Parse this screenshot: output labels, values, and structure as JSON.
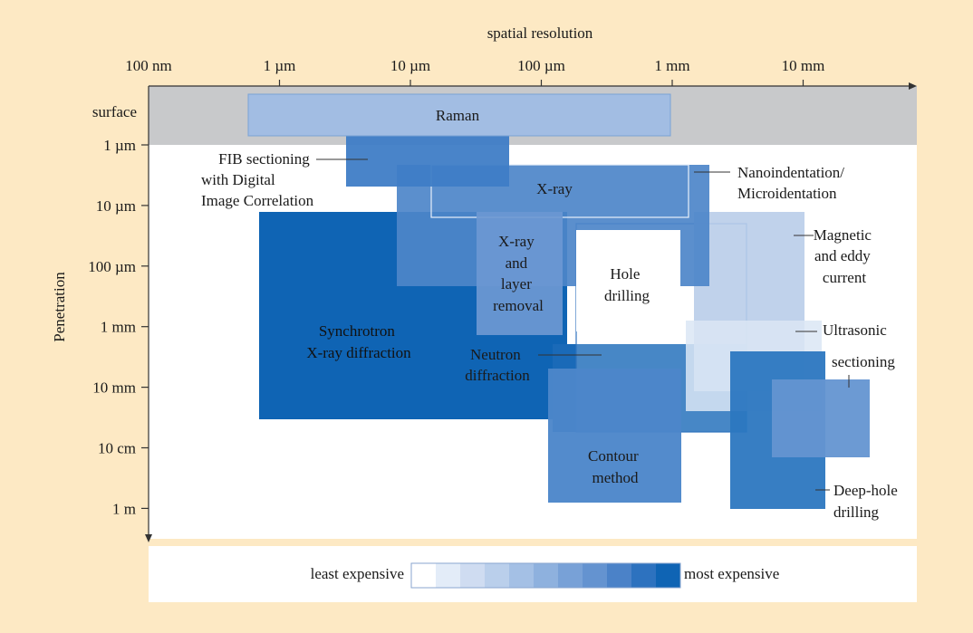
{
  "chart_data": {
    "type": "range-rectangles",
    "title": "",
    "xlabel": "spatial resolution",
    "ylabel": "Penetration",
    "x_axis": {
      "scale": "log",
      "unit": "m",
      "ticks": [
        {
          "value": 1e-07,
          "label": "100 nm"
        },
        {
          "value": 1e-06,
          "label": "1 µm"
        },
        {
          "value": 1e-05,
          "label": "10 µm"
        },
        {
          "value": 0.0001,
          "label": "100 µm"
        },
        {
          "value": 0.001,
          "label": "1 mm"
        },
        {
          "value": 0.01,
          "label": "10 mm"
        }
      ],
      "range": [
        1e-07,
        0.1
      ]
    },
    "y_axis": {
      "scale": "log",
      "unit": "m",
      "inverted": true,
      "surface_label": "surface",
      "ticks": [
        {
          "value": 1e-06,
          "label": "1 µm"
        },
        {
          "value": 1e-05,
          "label": "10 µm"
        },
        {
          "value": 0.0001,
          "label": "100 µm"
        },
        {
          "value": 0.001,
          "label": "1 mm"
        },
        {
          "value": 0.01,
          "label": "10 mm"
        },
        {
          "value": 0.1,
          "label": "10 cm"
        },
        {
          "value": 1,
          "label": "1 m"
        }
      ],
      "range": [
        1e-06,
        2
      ]
    },
    "cost_scale": {
      "low_label": "least expensive",
      "high_label": "most expensive",
      "colors": [
        "#ffffff",
        "#e3ecf8",
        "#cfdcf1",
        "#bacfeb",
        "#a4c0e5",
        "#8eb1de",
        "#78a1d7",
        "#6493d0",
        "#4b82c8",
        "#2d72bf",
        "#0f64b4"
      ]
    },
    "techniques": [
      {
        "name": "Synchrotron X-ray diffraction",
        "lines": [
          "Synchrotron",
          "X-ray diffraction"
        ],
        "x_range": [
          8e-07,
          0.002
        ],
        "depth_range": [
          1.5e-05,
          0.05
        ],
        "cost": 10
      },
      {
        "name": "FIB sectioning with Digital Image Correlation",
        "lines": [
          "FIB sectioning",
          "with Digital",
          "Image Correlation"
        ],
        "x_range": [
          3e-06,
          5e-05
        ],
        "depth_range": [
          1e-06,
          8e-06
        ],
        "cost": 7
      },
      {
        "name": "X-ray",
        "lines": [
          "X-ray"
        ],
        "x_range": [
          7e-06,
          0.0025
        ],
        "depth_range": [
          3e-06,
          0.0002
        ],
        "cost": 7
      },
      {
        "name": "X-ray and layer removal",
        "lines": [
          "X-ray",
          "and",
          "layer",
          "removal"
        ],
        "x_range": [
          3e-05,
          0.00017
        ],
        "depth_range": [
          2e-05,
          0.001
        ],
        "cost": 6
      },
      {
        "name": "Nanoindentation/Microidentation",
        "lines": [
          "Nanoindentation/",
          "Microidentation"
        ],
        "x_range": [
          2e-05,
          0.0015
        ],
        "depth_range": [
          0,
          1.4e-05
        ],
        "cost": 0
      },
      {
        "name": "Hole drilling",
        "lines": [
          "Hole",
          "drilling"
        ],
        "x_range": [
          0.00017,
          0.004
        ],
        "depth_range": [
          2.5e-05,
          0.07
        ],
        "cost": 0
      },
      {
        "name": "Magnetic and eddy current",
        "lines": [
          "Magnetic",
          "and eddy",
          "current"
        ],
        "x_range": [
          0.0016,
          0.02
        ],
        "depth_range": [
          1.5e-05,
          0.01
        ],
        "cost": 5
      },
      {
        "name": "Ultrasonic",
        "lines": [
          "Ultrasonic"
        ],
        "x_range": [
          0.001,
          0.02
        ],
        "depth_range": [
          0.001,
          0.04
        ],
        "cost": 2
      },
      {
        "name": "Neutron diffraction",
        "lines": [
          "Neutron",
          "diffraction"
        ],
        "x_range": [
          0.00012,
          0.002
        ],
        "depth_range": [
          0.002,
          0.5
        ],
        "cost": 8
      },
      {
        "name": "Contour method",
        "lines": [
          "Contour",
          "method"
        ],
        "x_range": [
          0.00012,
          0.0012
        ],
        "depth_range": [
          0.007,
          1.6
        ],
        "cost": 8
      },
      {
        "name": "Deep-hole drilling",
        "lines": [
          "Deep-hole",
          "drilling"
        ],
        "x_range": [
          0.003,
          0.02
        ],
        "depth_range": [
          0.003,
          2
        ],
        "cost": 9
      },
      {
        "name": "sectioning",
        "lines": [
          "sectioning"
        ],
        "x_range": [
          0.006,
          0.055
        ],
        "depth_range": [
          0.015,
          0.25
        ],
        "cost": 7
      },
      {
        "name": "Raman",
        "lines": [
          "Raman"
        ],
        "x_range": [
          6e-07,
          0.001
        ],
        "depth_range": [
          0,
          0
        ],
        "cost": 4
      }
    ]
  }
}
